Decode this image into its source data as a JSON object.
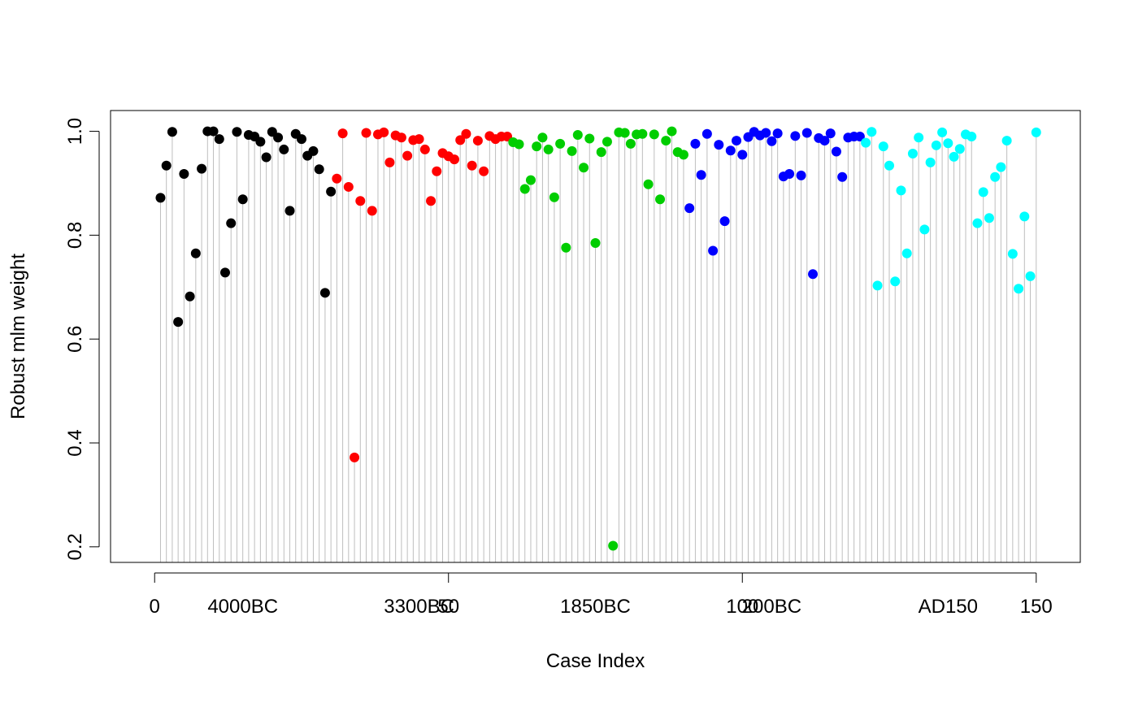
{
  "chart_data": {
    "type": "scatter",
    "xlabel": "Case Index",
    "ylabel": "Robust mlm weight",
    "xlim": [
      -7.5,
      157.5
    ],
    "ylim": [
      0.17,
      1.04
    ],
    "x_ticks": [
      0,
      50,
      100,
      150
    ],
    "x_tick_labels": [
      "0",
      "50",
      "100",
      "150"
    ],
    "y_ticks": [
      0.2,
      0.4,
      0.6,
      0.8,
      1.0
    ],
    "y_tick_labels": [
      "0.2",
      "0.4",
      "0.6",
      "0.8",
      "1.0"
    ],
    "group_labels": [
      {
        "label": "4000BC",
        "x": 15
      },
      {
        "label": "3300BC",
        "x": 45
      },
      {
        "label": "1850BC",
        "x": 75
      },
      {
        "label": "200BC",
        "x": 105
      },
      {
        "label": "AD150",
        "x": 135
      }
    ],
    "stems": true,
    "stem_color": "#bebebe",
    "series": [
      {
        "color": "#000000",
        "x_start": 1,
        "values": [
          0.872,
          0.934,
          0.999,
          0.633,
          0.918,
          0.682,
          0.765,
          0.928,
          1.0,
          1.0,
          0.985,
          0.728,
          0.823,
          0.999,
          0.869,
          0.993,
          0.99,
          0.98,
          0.95,
          0.999,
          0.988,
          0.965,
          0.847,
          0.995,
          0.985,
          0.953,
          0.962,
          0.927,
          0.689,
          0.884
        ]
      },
      {
        "color": "#ff0000",
        "x_start": 31,
        "values": [
          0.909,
          0.996,
          0.893,
          0.372,
          0.866,
          0.997,
          0.847,
          0.994,
          0.998,
          0.94,
          0.992,
          0.988,
          0.953,
          0.983,
          0.985,
          0.965,
          0.866,
          0.923,
          0.958,
          0.952,
          0.946,
          0.983,
          0.995,
          0.934,
          0.982,
          0.923,
          0.991,
          0.985,
          0.99,
          0.99
        ]
      },
      {
        "color": "#00cd00",
        "x_start": 61,
        "values": [
          0.979,
          0.975,
          0.889,
          0.906,
          0.971,
          0.988,
          0.965,
          0.873,
          0.976,
          0.776,
          0.962,
          0.993,
          0.93,
          0.986,
          0.785,
          0.96,
          0.98,
          0.202,
          0.998,
          0.997,
          0.976,
          0.994,
          0.995,
          0.898,
          0.994,
          0.869,
          0.982,
          1.0,
          0.96,
          0.955
        ]
      },
      {
        "color": "#0000ff",
        "x_start": 91,
        "values": [
          0.852,
          0.976,
          0.916,
          0.995,
          0.77,
          0.974,
          0.827,
          0.963,
          0.982,
          0.955,
          0.989,
          0.999,
          0.992,
          0.997,
          0.981,
          0.996,
          0.913,
          0.918,
          0.991,
          0.915,
          0.997,
          0.725,
          0.987,
          0.982,
          0.996,
          0.961,
          0.912,
          0.988,
          0.99,
          0.99
        ]
      },
      {
        "color": "#00ffff",
        "x_start": 121,
        "values": [
          0.978,
          0.999,
          0.703,
          0.971,
          0.934,
          0.711,
          0.886,
          0.765,
          0.957,
          0.988,
          0.811,
          0.94,
          0.973,
          0.998,
          0.977,
          0.951,
          0.966,
          0.994,
          0.99,
          0.823,
          0.883,
          0.833,
          0.912,
          0.931,
          0.982,
          0.764,
          0.697,
          0.836,
          0.721,
          0.998
        ]
      }
    ]
  }
}
